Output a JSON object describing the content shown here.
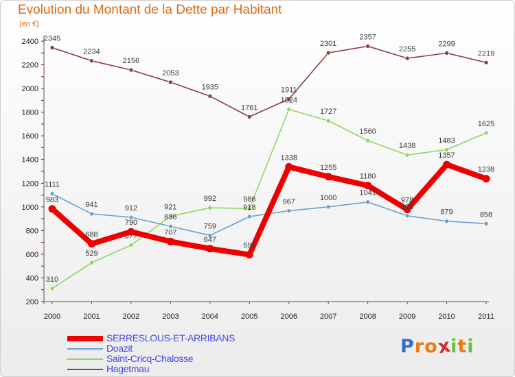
{
  "title": "Evolution du Montant de la Dette par Habitant",
  "subtitle": "(en €)",
  "chart_data": {
    "type": "line",
    "title": "Evolution du Montant de la Dette par Habitant",
    "ylabel": "(en €)",
    "xlabel": "",
    "x": [
      "2000",
      "2001",
      "2002",
      "2003",
      "2004",
      "2005",
      "2006",
      "2007",
      "2008",
      "2009",
      "2010",
      "2011"
    ],
    "ylim": [
      200,
      2400
    ],
    "yticks": [
      200,
      400,
      600,
      800,
      1000,
      1200,
      1400,
      1600,
      1800,
      2000,
      2200,
      2400
    ],
    "grid": false,
    "legend_position": "bottom-left",
    "series": [
      {
        "name": "SERRESLOUS-ET-ARRIBANS",
        "color": "#ee0000",
        "values": [
          983,
          688,
          790,
          707,
          647,
          596,
          1338,
          1255,
          1180,
          978,
          1357,
          1238
        ]
      },
      {
        "name": "Doazit",
        "color": "#6a9fd0",
        "values": [
          1111,
          941,
          912,
          836,
          759,
          918,
          967,
          1000,
          1041,
          925,
          879,
          858
        ]
      },
      {
        "name": "Saint-Cricq-Chalosse",
        "color": "#8fd660",
        "values": [
          310,
          529,
          677,
          921,
          992,
          986,
          1824,
          1727,
          1560,
          1438,
          1483,
          1625
        ]
      },
      {
        "name": "Hagetmau",
        "color": "#8a3f3f",
        "values": [
          2345,
          2234,
          2156,
          2053,
          1935,
          1761,
          1911,
          2301,
          2357,
          2255,
          2299,
          2219
        ]
      }
    ]
  },
  "logo": {
    "letters": [
      "P",
      "r",
      "o",
      "x",
      "i",
      "t",
      "i"
    ],
    "colors": [
      "#2d6fcf",
      "#e97b1a",
      "#e97b1a",
      "#d32b2b",
      "#6cbf3a",
      "#e97b1a",
      "#6cbf3a"
    ]
  }
}
